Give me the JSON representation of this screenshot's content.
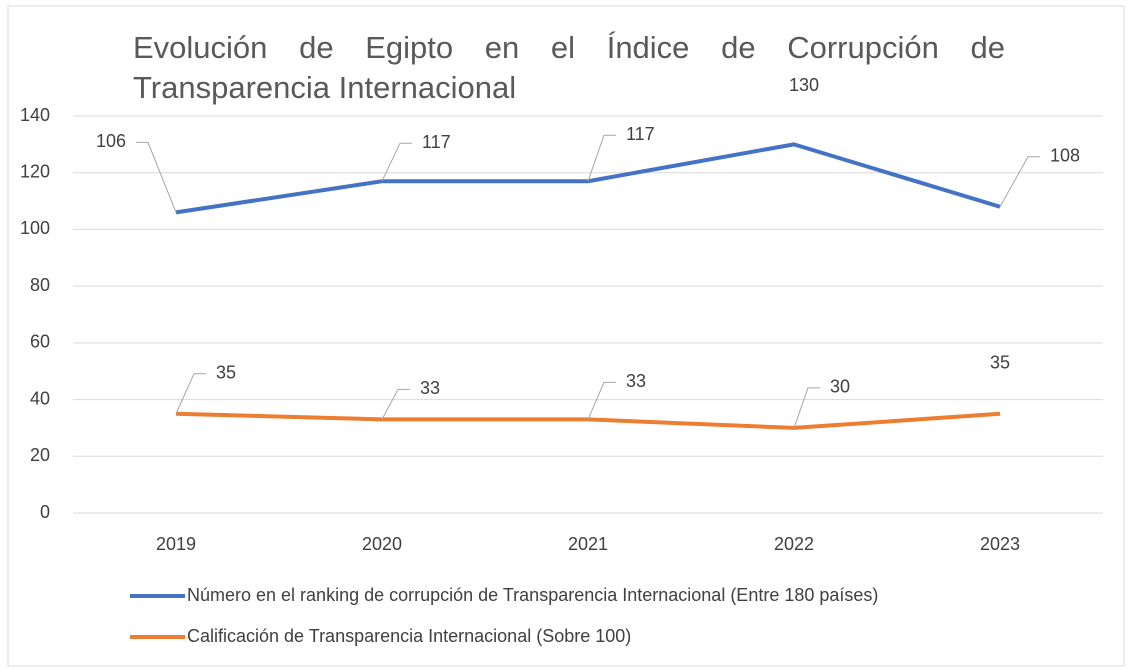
{
  "chart_data": {
    "type": "line",
    "title": "Evolución de Egipto en el Índice de Corrupción de Transparencia Internacional",
    "categories": [
      "2019",
      "2020",
      "2021",
      "2022",
      "2023"
    ],
    "series": [
      {
        "name": "Número en el ranking de corrupción de Transparencia Internacional (Entre 180 países)",
        "color": "#4472c4",
        "values": [
          106,
          117,
          117,
          130,
          108
        ]
      },
      {
        "name": "Calificación de Transparencia Internacional (Sobre 100)",
        "color": "#ed7d31",
        "values": [
          35,
          33,
          33,
          30,
          35
        ]
      }
    ],
    "ylim": [
      0,
      140
    ],
    "yticks": [
      0,
      20,
      40,
      60,
      80,
      100,
      120,
      140
    ],
    "grid": true,
    "legend": "bottom"
  }
}
